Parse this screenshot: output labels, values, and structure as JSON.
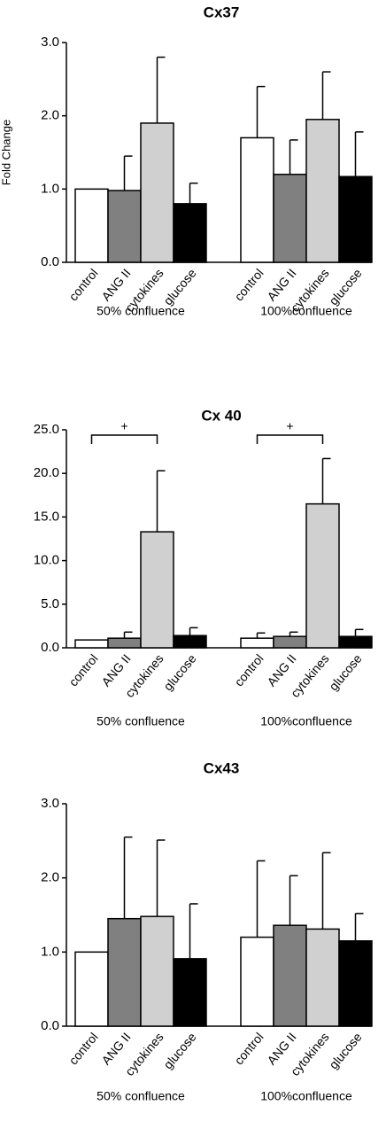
{
  "chart_data": [
    {
      "type": "bar",
      "title": "Cx37",
      "ylabel": "Fold Change",
      "groups": [
        "50% confluence",
        "100%confluence"
      ],
      "series": [
        {
          "name": "control",
          "color": "#ffffff",
          "values": [
            1.0,
            1.7
          ],
          "errors": [
            null,
            0.7
          ]
        },
        {
          "name": "ANG II",
          "color": "#808080",
          "values": [
            0.98,
            1.2
          ],
          "errors": [
            0.47,
            0.47
          ]
        },
        {
          "name": "cytokines",
          "color": "#d0d0d0",
          "values": [
            1.9,
            1.95
          ],
          "errors": [
            0.9,
            0.65
          ]
        },
        {
          "name": "glucose",
          "color": "#000000",
          "values": [
            0.8,
            1.17
          ],
          "errors": [
            0.28,
            0.61
          ]
        }
      ],
      "ylim": [
        0,
        3
      ],
      "yticks": [
        {
          "value": 0,
          "label": "0.0"
        },
        {
          "value": 1,
          "label": "1.0"
        },
        {
          "value": 2,
          "label": "2.0"
        },
        {
          "value": 3,
          "label": "3.0"
        }
      ]
    },
    {
      "type": "bar",
      "title": "Cx 40",
      "groups": [
        "50% confluence",
        "100%confluence"
      ],
      "series": [
        {
          "name": "control",
          "color": "#ffffff",
          "values": [
            0.9,
            1.1
          ],
          "errors": [
            null,
            0.6
          ]
        },
        {
          "name": "ANG II",
          "color": "#808080",
          "values": [
            1.1,
            1.3
          ],
          "errors": [
            0.7,
            0.5
          ]
        },
        {
          "name": "cytokines",
          "color": "#d0d0d0",
          "values": [
            13.3,
            16.5
          ],
          "errors": [
            7.0,
            5.2
          ]
        },
        {
          "name": "glucose",
          "color": "#000000",
          "values": [
            1.4,
            1.3
          ],
          "errors": [
            0.9,
            0.8
          ]
        }
      ],
      "annotations": [
        "+",
        "+"
      ],
      "ylim": [
        0,
        25
      ],
      "yticks": [
        {
          "value": 0,
          "label": "0.0"
        },
        {
          "value": 5,
          "label": "5.0"
        },
        {
          "value": 10,
          "label": "10.0"
        },
        {
          "value": 15,
          "label": "15.0"
        },
        {
          "value": 20,
          "label": "20.0"
        },
        {
          "value": 25,
          "label": "25.0"
        }
      ]
    },
    {
      "type": "bar",
      "title": "Cx43",
      "groups": [
        "50% confluence",
        "100%confluence"
      ],
      "series": [
        {
          "name": "control",
          "color": "#ffffff",
          "values": [
            1.0,
            1.2
          ],
          "errors": [
            null,
            1.03
          ]
        },
        {
          "name": "ANG II",
          "color": "#808080",
          "values": [
            1.45,
            1.36
          ],
          "errors": [
            1.1,
            0.67
          ]
        },
        {
          "name": "cytokines",
          "color": "#d0d0d0",
          "values": [
            1.48,
            1.31
          ],
          "errors": [
            1.03,
            1.03
          ]
        },
        {
          "name": "glucose",
          "color": "#000000",
          "values": [
            0.91,
            1.15
          ],
          "errors": [
            0.74,
            0.37
          ]
        }
      ],
      "ylim": [
        0,
        3
      ],
      "yticks": [
        {
          "value": 0,
          "label": "0.0"
        },
        {
          "value": 1,
          "label": "1.0"
        },
        {
          "value": 2,
          "label": "2.0"
        },
        {
          "value": 3,
          "label": "3.0"
        }
      ]
    }
  ]
}
